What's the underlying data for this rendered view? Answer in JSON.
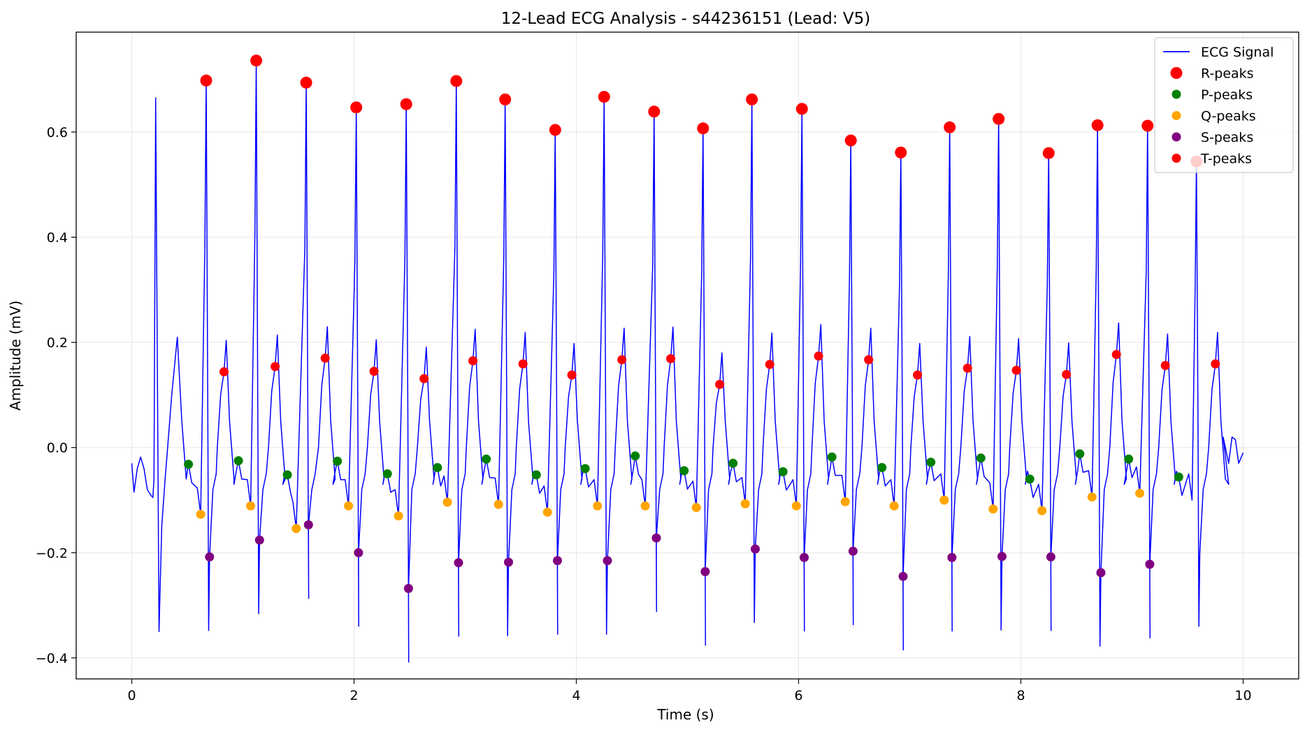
{
  "chart_data": {
    "type": "line",
    "title": "12-Lead ECG Analysis - s44236151 (Lead: V5)",
    "xlabel": "Time (s)",
    "ylabel": "Amplitude (mV)",
    "xlim": [
      -0.5,
      10.5
    ],
    "ylim": [
      -0.44,
      0.79
    ],
    "xticks": [
      0,
      2,
      4,
      6,
      8,
      10
    ],
    "xtick_labels": [
      "0",
      "2",
      "4",
      "6",
      "8",
      "10"
    ],
    "yticks": [
      -0.4,
      -0.2,
      0.0,
      0.2,
      0.4,
      0.6
    ],
    "ytick_labels": [
      "−0.4",
      "−0.2",
      "0.0",
      "0.2",
      "0.4",
      "0.6"
    ],
    "grid": true,
    "legend_position": "top-right",
    "legend": [
      "ECG Signal",
      "R-peaks",
      "P-peaks",
      "Q-peaks",
      "S-peaks",
      "T-peaks"
    ],
    "colors": {
      "ecg": "#0000ff",
      "r_peaks": "#ff0000",
      "p_peaks": "#008000",
      "q_peaks": "#ffa500",
      "s_peaks": "#800080",
      "t_peaks": "#ff0000"
    },
    "ecg_start": [
      [
        0.0,
        -0.03
      ],
      [
        0.02,
        -0.085
      ],
      [
        0.05,
        -0.04
      ],
      [
        0.08,
        -0.018
      ],
      [
        0.11,
        -0.04
      ],
      [
        0.14,
        -0.08
      ],
      [
        0.17,
        -0.09
      ],
      [
        0.19,
        -0.095
      ],
      [
        0.2,
        -0.06
      ],
      [
        0.215,
        0.665
      ],
      [
        0.245,
        -0.35
      ],
      [
        0.27,
        -0.15
      ],
      [
        0.3,
        -0.06
      ],
      [
        0.33,
        0.02
      ],
      [
        0.36,
        0.1
      ],
      [
        0.41,
        0.21
      ],
      [
        0.45,
        0.05
      ],
      [
        0.49,
        -0.06
      ],
      [
        0.51,
        -0.03
      ]
    ],
    "series": [
      {
        "name": "R-peaks",
        "x": [
          0.67,
          1.12,
          1.57,
          2.02,
          2.47,
          2.92,
          3.36,
          3.81,
          4.25,
          4.7,
          5.14,
          5.58,
          6.03,
          6.47,
          6.92,
          7.36,
          7.8,
          8.25,
          8.69,
          9.14,
          9.58
        ],
        "y": [
          0.698,
          0.736,
          0.694,
          0.647,
          0.653,
          0.697,
          0.662,
          0.604,
          0.667,
          0.639,
          0.607,
          0.662,
          0.644,
          0.584,
          0.561,
          0.609,
          0.625,
          0.56,
          0.613,
          0.612,
          0.544
        ]
      },
      {
        "name": "P-peaks",
        "x": [
          0.51,
          0.96,
          1.4,
          1.85,
          2.3,
          2.75,
          3.19,
          3.64,
          4.08,
          4.53,
          4.97,
          5.41,
          5.86,
          6.3,
          6.75,
          7.19,
          7.64,
          8.08,
          8.53,
          8.97,
          9.42
        ],
        "y": [
          -0.032,
          -0.025,
          -0.052,
          -0.026,
          -0.05,
          -0.038,
          -0.022,
          -0.052,
          -0.04,
          -0.016,
          -0.044,
          -0.03,
          -0.046,
          -0.018,
          -0.038,
          -0.028,
          -0.02,
          -0.06,
          -0.012,
          -0.022,
          -0.056
        ]
      },
      {
        "name": "Q-peaks",
        "x": [
          0.62,
          1.07,
          1.48,
          1.95,
          2.4,
          2.84,
          3.3,
          3.74,
          4.19,
          4.62,
          5.08,
          5.52,
          5.98,
          6.42,
          6.86,
          7.31,
          7.75,
          8.19,
          8.64,
          9.07
        ],
        "y": [
          -0.127,
          -0.111,
          -0.154,
          -0.111,
          -0.13,
          -0.104,
          -0.108,
          -0.123,
          -0.111,
          -0.111,
          -0.114,
          -0.107,
          -0.111,
          -0.103,
          -0.111,
          -0.1,
          -0.117,
          -0.12,
          -0.094,
          -0.087
        ]
      },
      {
        "name": "S-peaks",
        "x": [
          0.7,
          1.15,
          1.59,
          2.04,
          2.49,
          2.94,
          3.39,
          3.83,
          4.28,
          4.72,
          5.16,
          5.61,
          6.05,
          6.49,
          6.94,
          7.38,
          7.83,
          8.27,
          8.72,
          9.16
        ],
        "y": [
          -0.208,
          -0.176,
          -0.147,
          -0.2,
          -0.268,
          -0.219,
          -0.218,
          -0.215,
          -0.215,
          -0.172,
          -0.236,
          -0.193,
          -0.209,
          -0.197,
          -0.245,
          -0.209,
          -0.207,
          -0.208,
          -0.238,
          -0.222
        ]
      },
      {
        "name": "T-peaks",
        "x": [
          0.83,
          1.29,
          1.74,
          2.18,
          2.63,
          3.07,
          3.52,
          3.96,
          4.41,
          4.85,
          5.29,
          5.74,
          6.18,
          6.63,
          7.07,
          7.52,
          7.96,
          8.41,
          8.86,
          9.3,
          9.75
        ],
        "y": [
          0.144,
          0.154,
          0.17,
          0.145,
          0.131,
          0.165,
          0.159,
          0.138,
          0.167,
          0.169,
          0.12,
          0.158,
          0.174,
          0.167,
          0.138,
          0.151,
          0.147,
          0.139,
          0.177,
          0.156,
          0.159
        ]
      }
    ]
  }
}
